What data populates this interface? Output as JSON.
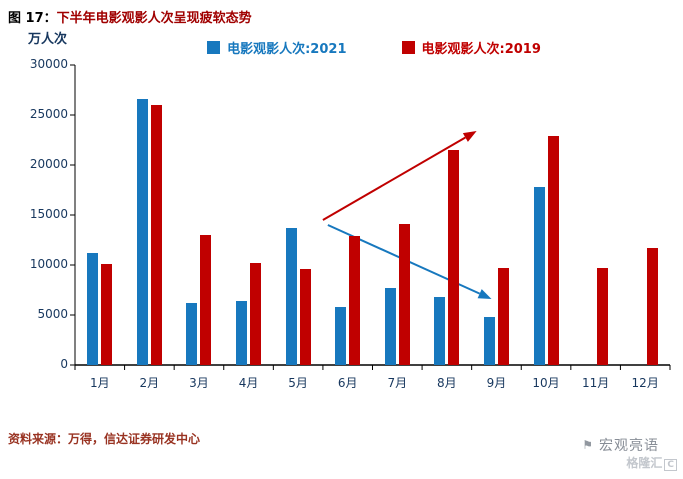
{
  "header": {
    "figure_label": "图 17：",
    "title": "下半年电影观影人次呈现疲软态势"
  },
  "legend": [
    {
      "label": "电影观影人次:2021",
      "color": "#1778be"
    },
    {
      "label": "电影观影人次:2019",
      "color": "#c00000"
    }
  ],
  "chart_data": {
    "type": "bar",
    "title": "下半年电影观影人次呈现疲软态势",
    "categories": [
      "1月",
      "2月",
      "3月",
      "4月",
      "5月",
      "6月",
      "7月",
      "8月",
      "9月",
      "10月",
      "11月",
      "12月"
    ],
    "series": [
      {
        "name": "电影观影人次:2021",
        "color": "#1778be",
        "values": [
          11200,
          26600,
          6200,
          6400,
          13700,
          5800,
          7700,
          6800,
          4800,
          17800,
          null,
          null
        ]
      },
      {
        "name": "电影观影人次:2019",
        "color": "#c00000",
        "values": [
          10100,
          26000,
          13000,
          10200,
          9600,
          12900,
          14100,
          21500,
          9700,
          22900,
          9700,
          11700
        ]
      }
    ],
    "xlabel": "",
    "ylabel": "万人次",
    "ylim": [
      0,
      30000
    ],
    "yticks": [
      0,
      5000,
      10000,
      15000,
      20000,
      25000,
      30000
    ],
    "grid": false,
    "legend_position": "top",
    "annotations": [
      {
        "type": "arrow",
        "color": "#c00000",
        "from": {
          "m": 5.5,
          "v": 14500
        },
        "to": {
          "m": 8.6,
          "v": 23400
        }
      },
      {
        "type": "arrow",
        "color": "#1778be",
        "from": {
          "m": 5.6,
          "v": 14000
        },
        "to": {
          "m": 8.9,
          "v": 6600
        }
      }
    ]
  },
  "source": "资料来源：万得，信达证券研发中心",
  "watermark": {
    "brand": "宏观亮语",
    "logo": "格隆汇",
    "logo_badge": "C"
  }
}
